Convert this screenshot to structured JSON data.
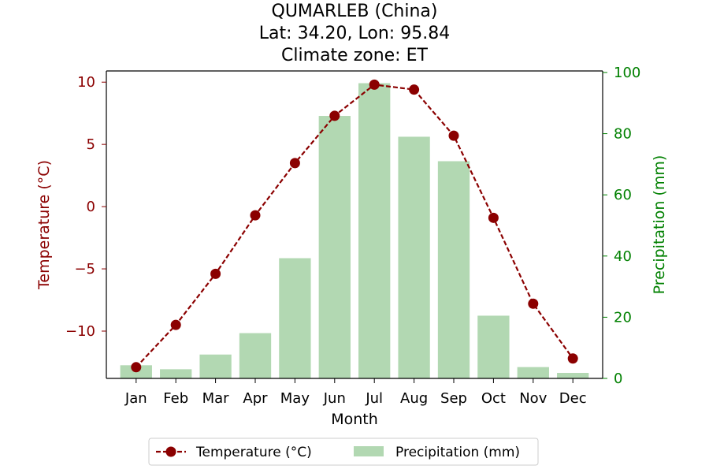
{
  "chart_data": {
    "type": "bar+line",
    "title_lines": [
      "QUMARLEB (China)",
      "Lat: 34.20, Lon: 95.84",
      "Climate zone: ET"
    ],
    "xlabel": "Month",
    "ylabel_left": "Temperature (°C)",
    "ylabel_right": "Precipitation (mm)",
    "categories": [
      "Jan",
      "Feb",
      "Mar",
      "Apr",
      "May",
      "Jun",
      "Jul",
      "Aug",
      "Sep",
      "Oct",
      "Nov",
      "Dec"
    ],
    "left_axis": {
      "ylim": [
        -13.8,
        10.9
      ],
      "ticks": [
        -10,
        -5,
        0,
        5,
        10
      ],
      "tick_labels": [
        "−10",
        "−5",
        "0",
        "5",
        "10"
      ]
    },
    "right_axis": {
      "ylim": [
        0,
        100.5
      ],
      "ticks": [
        0,
        20,
        40,
        60,
        80,
        100
      ],
      "tick_labels": [
        "0",
        "20",
        "40",
        "60",
        "80",
        "100"
      ]
    },
    "series": [
      {
        "name": "Temperature (°C)",
        "kind": "line",
        "axis": "left",
        "color": "#8b0000",
        "values": [
          -12.9,
          -9.5,
          -5.4,
          -0.7,
          3.5,
          7.3,
          9.8,
          9.4,
          5.7,
          -0.9,
          -7.8,
          -12.2
        ]
      },
      {
        "name": "Precipitation (mm)",
        "kind": "bar",
        "axis": "right",
        "color": "#b2d8b2",
        "values": [
          4.3,
          3.0,
          7.8,
          14.8,
          39.3,
          85.8,
          96.5,
          79.0,
          71.0,
          20.5,
          3.7,
          1.8
        ]
      }
    ],
    "legend": {
      "placement": "bottom-center",
      "entries": [
        "Temperature (°C)",
        "Precipitation (mm)"
      ]
    },
    "left_axis_color": "#8b0000",
    "right_axis_color": "#008000",
    "grid": false
  }
}
